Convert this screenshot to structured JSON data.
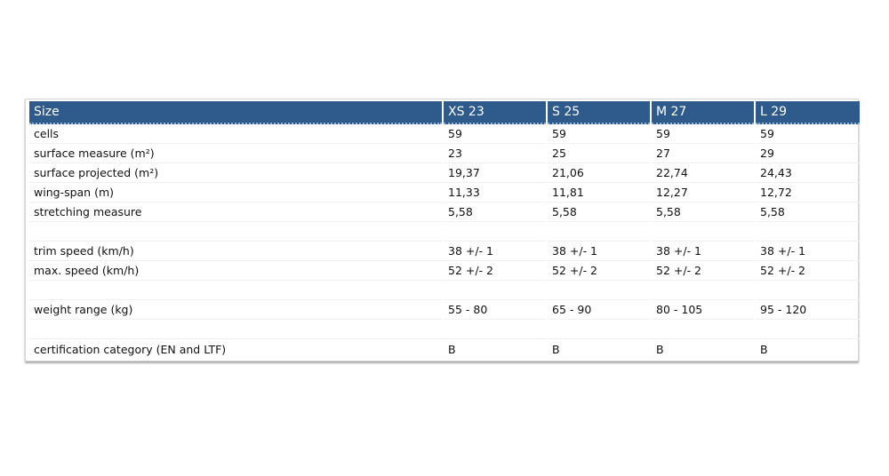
{
  "table": {
    "headers": [
      "Size",
      "XS 23",
      "S 25",
      "M 27",
      "L 29"
    ],
    "rows": [
      [
        "cells",
        "59",
        "59",
        "59",
        "59"
      ],
      [
        "surface measure (m²)",
        "23",
        "25",
        "27",
        "29"
      ],
      [
        "surface projected (m²)",
        "19,37",
        "21,06",
        "22,74",
        "24,43"
      ],
      [
        "wing-span (m)",
        "11,33",
        "11,81",
        "12,27",
        "12,72"
      ],
      [
        "stretching measure",
        "5,58",
        "5,58",
        "5,58",
        "5,58"
      ],
      [
        "",
        "",
        "",
        "",
        ""
      ],
      [
        "trim speed (km/h)",
        "38 +/- 1",
        "38 +/- 1",
        "38 +/- 1",
        "38 +/- 1"
      ],
      [
        "max. speed (km/h)",
        "52 +/- 2",
        "52 +/- 2",
        "52 +/- 2",
        "52 +/- 2"
      ],
      [
        "",
        "",
        "",
        "",
        ""
      ],
      [
        "weight range (kg)",
        "55 - 80",
        "65 - 90",
        "80 - 105",
        "95 - 120"
      ],
      [
        "",
        "",
        "",
        "",
        ""
      ],
      [
        "certification category (EN and LTF)",
        "B",
        "B",
        "B",
        "B"
      ]
    ]
  },
  "colors": {
    "header_bg": "#2e5b8b",
    "header_text": "#ffffff",
    "body_text": "#111111"
  }
}
